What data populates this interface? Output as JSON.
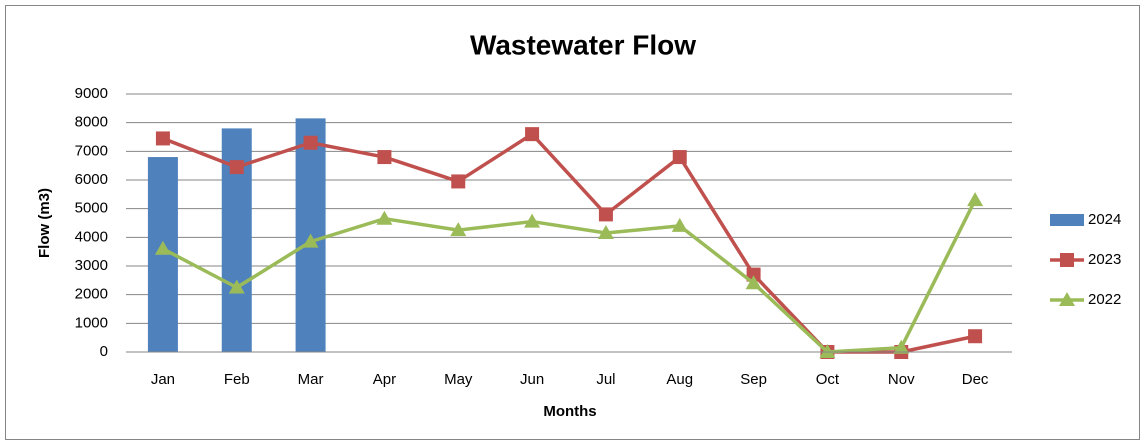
{
  "chart_data": {
    "type": "combo",
    "title": "Wastewater Flow",
    "x_label": "Months",
    "y_label": "Flow (m3)",
    "categories": [
      "Jan",
      "Feb",
      "Mar",
      "Apr",
      "May",
      "Jun",
      "Jul",
      "Aug",
      "Sep",
      "Oct",
      "Nov",
      "Dec"
    ],
    "series": [
      {
        "name": "2024",
        "type": "bar",
        "color": "#4f81bd",
        "values": [
          6800,
          7800,
          8150,
          null,
          null,
          null,
          null,
          null,
          null,
          null,
          null,
          null
        ]
      },
      {
        "name": "2023",
        "type": "line",
        "marker": "square",
        "color": "#c0504d",
        "values": [
          7450,
          6450,
          7300,
          6800,
          5950,
          7600,
          4800,
          6800,
          2700,
          0,
          0,
          550
        ]
      },
      {
        "name": "2022",
        "type": "line",
        "marker": "triangle",
        "color": "#9bbb59",
        "values": [
          3600,
          2250,
          3850,
          4650,
          4250,
          4550,
          4150,
          4400,
          2400,
          0,
          150,
          5300
        ]
      }
    ],
    "ylim": [
      0,
      9000
    ],
    "yticks": [
      0,
      1000,
      2000,
      3000,
      4000,
      5000,
      6000,
      7000,
      8000,
      9000
    ],
    "grid": true,
    "legend": "right"
  }
}
